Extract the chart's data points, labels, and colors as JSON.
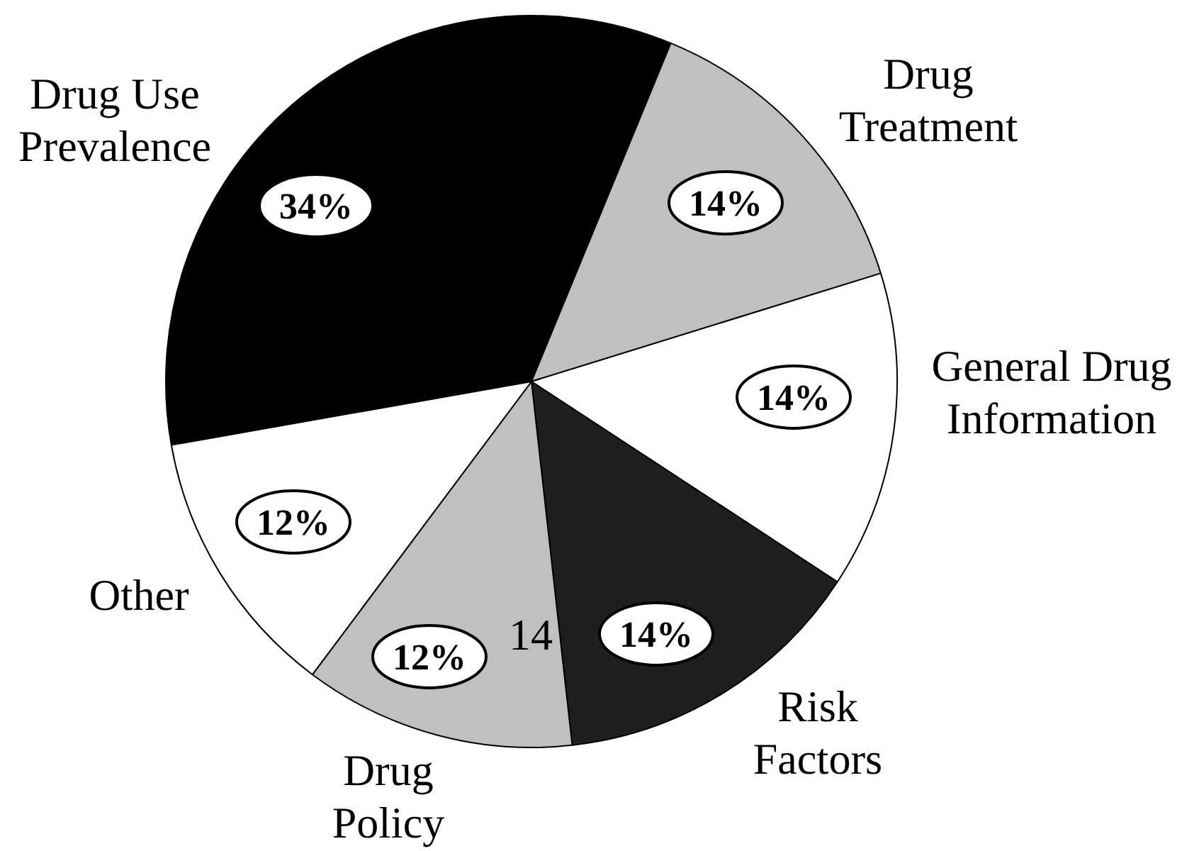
{
  "chart_data": {
    "type": "pie",
    "categories": [
      "Drug Use Prevalence",
      "Drug Treatment",
      "General Drug Information",
      "Risk Factors",
      "Drug Policy",
      "Other"
    ],
    "values": [
      34,
      14,
      14,
      14,
      12,
      12
    ],
    "colors": [
      "#000000",
      "#c0c0c0",
      "#ffffff",
      "#1f1f1f",
      "#c0c0c0",
      "#ffffff"
    ],
    "value_labels": [
      "34%",
      "14%",
      "14%",
      "14%",
      "12%",
      "12%"
    ],
    "annotations": [
      {
        "text": "14",
        "x": "Risk Factors"
      }
    ]
  }
}
